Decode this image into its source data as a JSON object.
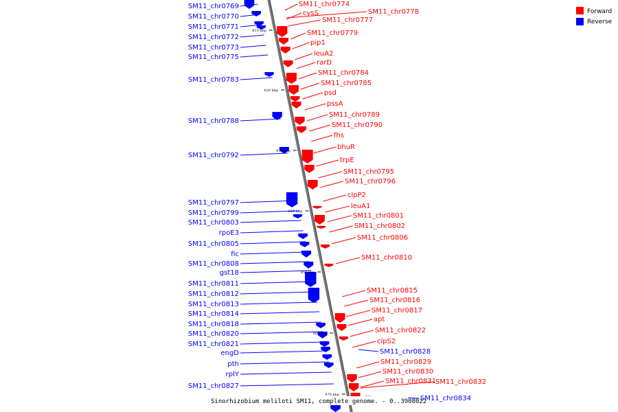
{
  "title": "Sinorhizobium meliloti SM11, complete genome. - 0..3908022",
  "legend": [
    {
      "label": "Forward",
      "color": "#ff0000"
    },
    {
      "label": "Reverse",
      "color": "#0000ff"
    }
  ],
  "colors": {
    "forward": "#ff0000",
    "reverse": "#0000ff",
    "forward_label": "#ff0000",
    "reverse_label": "#0000ff",
    "axis": "#777777"
  },
  "ticks": [
    "810 kbp",
    "820 kbp",
    "830 kbp",
    "840 kbp",
    "850 kbp",
    "860 kbp",
    "870 kbp"
  ],
  "reverse_genes": [
    "SM11_chr0769",
    "SM11_chr0770",
    "SM11_chr0771",
    "SM11_chr0772",
    "SM11_chr0773",
    "SM11_chr0775",
    "SM11_chr0783",
    "SM11_chr0788",
    "SM11_chr0792",
    "SM11_chr0797",
    "SM11_chr0799",
    "SM11_chr0803",
    "rpoE3",
    "SM11_chr0805",
    "fic",
    "SM11_chr0808",
    "gst18",
    "SM11_chr0811",
    "SM11_chr0812",
    "SM11_chr0813",
    "SM11_chr0814",
    "SM11_chr0818",
    "SM11_chr0820",
    "SM11_chr0821",
    "engD",
    "pth",
    "rplY",
    "SM11_chr0827",
    "SM11_chr0828",
    "SM11_chr0834"
  ],
  "forward_genes": [
    "SM11_chr0774",
    "cysS",
    "SM11_chr0778",
    "SM11_chr0777",
    "SM11_chr0779",
    "pip1",
    "leuA2",
    "rarD",
    "SM11_chr0784",
    "SM11_chr0785",
    "psd",
    "pssA",
    "SM11_chr0789",
    "SM11_chr0790",
    "fhs",
    "bhuR",
    "trpE",
    "SM11_chr0795",
    "SM11_chr0796",
    "clpP2",
    "leuA1",
    "SM11_chr0801",
    "SM11_chr0802",
    "SM11_chr0806",
    "SM11_chr0810",
    "SM11_chr0815",
    "SM11_chr0816",
    "SM11_chr0817",
    "apt",
    "SM11_chr0822",
    "clpS2",
    "SM11_chr0829",
    "SM11_chr0830",
    "SM11_chr0831",
    "SM11_chr0832"
  ]
}
